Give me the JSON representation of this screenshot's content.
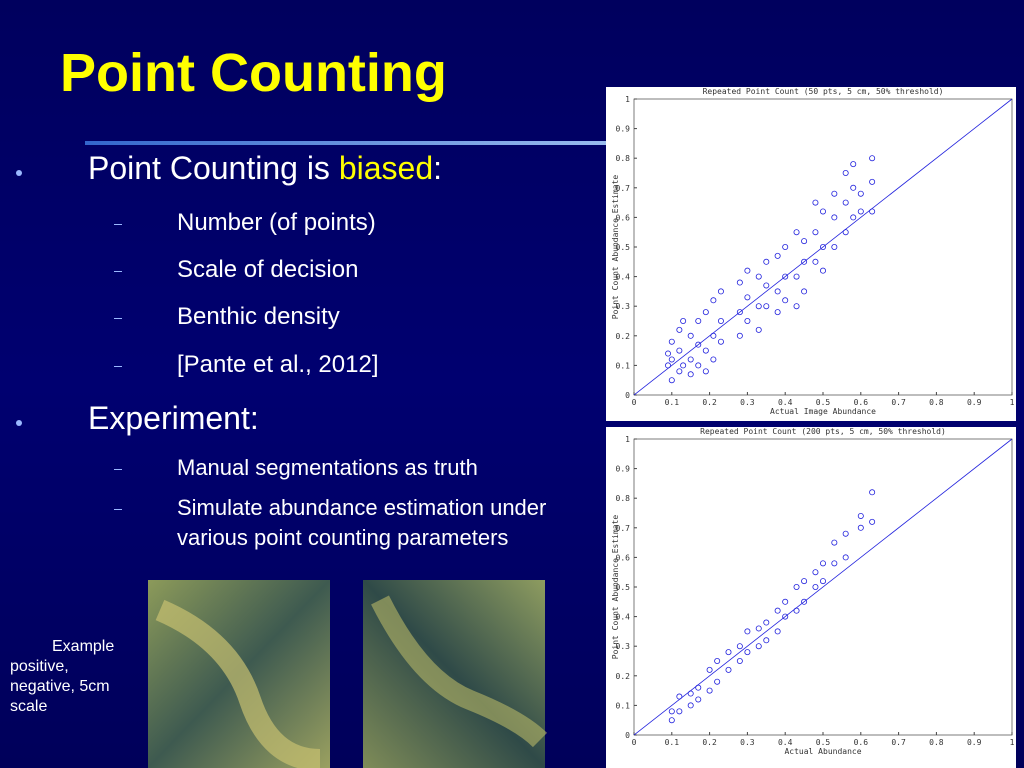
{
  "title": "Point Counting",
  "bullets": [
    {
      "parts": [
        "Point Counting is ",
        "biased",
        ":"
      ],
      "sub": [
        "Number (of points)",
        "Scale of decision",
        "Benthic density",
        "[Pante et al., 2012]"
      ]
    },
    {
      "parts": [
        "Experiment:"
      ],
      "sub": [
        "Manual segmentations as truth",
        "Simulate abundance estimation under various point counting parameters"
      ]
    }
  ],
  "caption": "Example positive, negative, 5cm scale",
  "chart_data": [
    {
      "type": "scatter",
      "title": "Repeated Point Count (50 pts, 5 cm, 50% threshold)",
      "xlabel": "Actual Image Abundance",
      "ylabel": "Point Count Abundance Estimate",
      "xlim": [
        0,
        1
      ],
      "ylim": [
        0,
        1
      ],
      "xticks": [
        0,
        0.1,
        0.2,
        0.3,
        0.4,
        0.5,
        0.6,
        0.7,
        0.8,
        0.9,
        1
      ],
      "yticks": [
        0,
        0.1,
        0.2,
        0.3,
        0.4,
        0.5,
        0.6,
        0.7,
        0.8,
        0.9,
        1
      ],
      "color": "#2222dd",
      "x": [
        0.09,
        0.09,
        0.1,
        0.1,
        0.1,
        0.12,
        0.12,
        0.12,
        0.13,
        0.13,
        0.15,
        0.15,
        0.15,
        0.17,
        0.17,
        0.17,
        0.19,
        0.19,
        0.19,
        0.21,
        0.21,
        0.21,
        0.23,
        0.23,
        0.23,
        0.28,
        0.28,
        0.28,
        0.3,
        0.3,
        0.3,
        0.33,
        0.33,
        0.33,
        0.35,
        0.35,
        0.35,
        0.38,
        0.38,
        0.38,
        0.4,
        0.4,
        0.4,
        0.43,
        0.43,
        0.43,
        0.45,
        0.45,
        0.45,
        0.48,
        0.48,
        0.48,
        0.5,
        0.5,
        0.5,
        0.53,
        0.53,
        0.53,
        0.56,
        0.56,
        0.56,
        0.58,
        0.58,
        0.58,
        0.6,
        0.6,
        0.63,
        0.63,
        0.63
      ],
      "y": [
        0.14,
        0.1,
        0.05,
        0.12,
        0.18,
        0.08,
        0.15,
        0.22,
        0.1,
        0.25,
        0.07,
        0.12,
        0.2,
        0.1,
        0.17,
        0.25,
        0.08,
        0.15,
        0.28,
        0.12,
        0.2,
        0.32,
        0.18,
        0.25,
        0.35,
        0.2,
        0.28,
        0.38,
        0.25,
        0.33,
        0.42,
        0.22,
        0.3,
        0.4,
        0.3,
        0.37,
        0.45,
        0.28,
        0.35,
        0.47,
        0.32,
        0.4,
        0.5,
        0.3,
        0.4,
        0.55,
        0.35,
        0.45,
        0.52,
        0.45,
        0.55,
        0.65,
        0.42,
        0.5,
        0.62,
        0.5,
        0.6,
        0.68,
        0.55,
        0.65,
        0.75,
        0.6,
        0.7,
        0.78,
        0.62,
        0.68,
        0.62,
        0.72,
        0.8
      ]
    },
    {
      "type": "scatter",
      "title": "Repeated Point Count (200 pts, 5 cm, 50% threshold)",
      "xlabel": "Actual Abundance",
      "ylabel": "Point Count Abundance Estimate",
      "xlim": [
        0,
        1
      ],
      "ylim": [
        0,
        1
      ],
      "xticks": [
        0,
        0.1,
        0.2,
        0.3,
        0.4,
        0.5,
        0.6,
        0.7,
        0.8,
        0.9,
        1
      ],
      "yticks": [
        0,
        0.1,
        0.2,
        0.3,
        0.4,
        0.5,
        0.6,
        0.7,
        0.8,
        0.9,
        1
      ],
      "color": "#2222dd",
      "x": [
        0.1,
        0.1,
        0.12,
        0.12,
        0.15,
        0.15,
        0.17,
        0.17,
        0.2,
        0.2,
        0.22,
        0.22,
        0.25,
        0.25,
        0.28,
        0.28,
        0.3,
        0.3,
        0.33,
        0.33,
        0.35,
        0.35,
        0.38,
        0.38,
        0.4,
        0.4,
        0.43,
        0.43,
        0.45,
        0.45,
        0.48,
        0.48,
        0.5,
        0.5,
        0.53,
        0.53,
        0.56,
        0.56,
        0.6,
        0.6,
        0.63,
        0.63
      ],
      "y": [
        0.05,
        0.08,
        0.08,
        0.13,
        0.1,
        0.14,
        0.12,
        0.16,
        0.15,
        0.22,
        0.18,
        0.25,
        0.22,
        0.28,
        0.25,
        0.3,
        0.28,
        0.35,
        0.3,
        0.36,
        0.32,
        0.38,
        0.35,
        0.42,
        0.4,
        0.45,
        0.42,
        0.5,
        0.45,
        0.52,
        0.5,
        0.55,
        0.52,
        0.58,
        0.58,
        0.65,
        0.6,
        0.68,
        0.7,
        0.74,
        0.72,
        0.82
      ]
    }
  ]
}
